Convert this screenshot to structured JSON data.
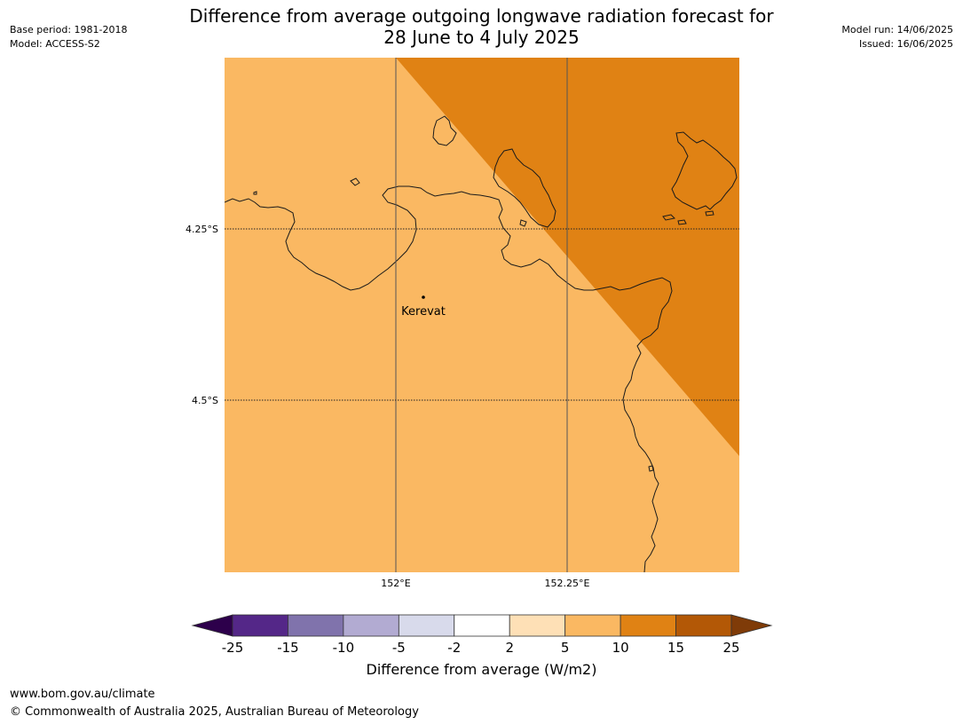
{
  "title": {
    "line1": "Difference from average outgoing longwave radiation forecast for",
    "line2": "28 June to 4 July 2025"
  },
  "meta": {
    "base_period": "Base period: 1981-2018",
    "model": "Model: ACCESS-S2",
    "model_run": "Model run: 14/06/2025",
    "issued": "Issued: 16/06/2025"
  },
  "map": {
    "lat_labels": [
      "4.25°S",
      "4.5°S"
    ],
    "lon_labels": [
      "152°E",
      "152.25°E"
    ],
    "place": "Kerevat",
    "fill_color_5_10": "#fab862",
    "fill_color_10_15": "#e08214"
  },
  "colorbar": {
    "label": "Difference from average (W/m2)",
    "ticks": [
      "-25",
      "-15",
      "-10",
      "-5",
      "-2",
      "2",
      "5",
      "10",
      "15",
      "25"
    ],
    "colors": [
      "#2d004b",
      "#542788",
      "#8073ac",
      "#b2abd2",
      "#d8daeb",
      "#ffffff",
      "#fee0b6",
      "#fab862",
      "#e08214",
      "#b35806",
      "#7f3b08"
    ]
  },
  "footer": {
    "url": "www.bom.gov.au/climate",
    "copyright": "© Commonwealth of Australia 2025, Australian Bureau of Meteorology"
  }
}
